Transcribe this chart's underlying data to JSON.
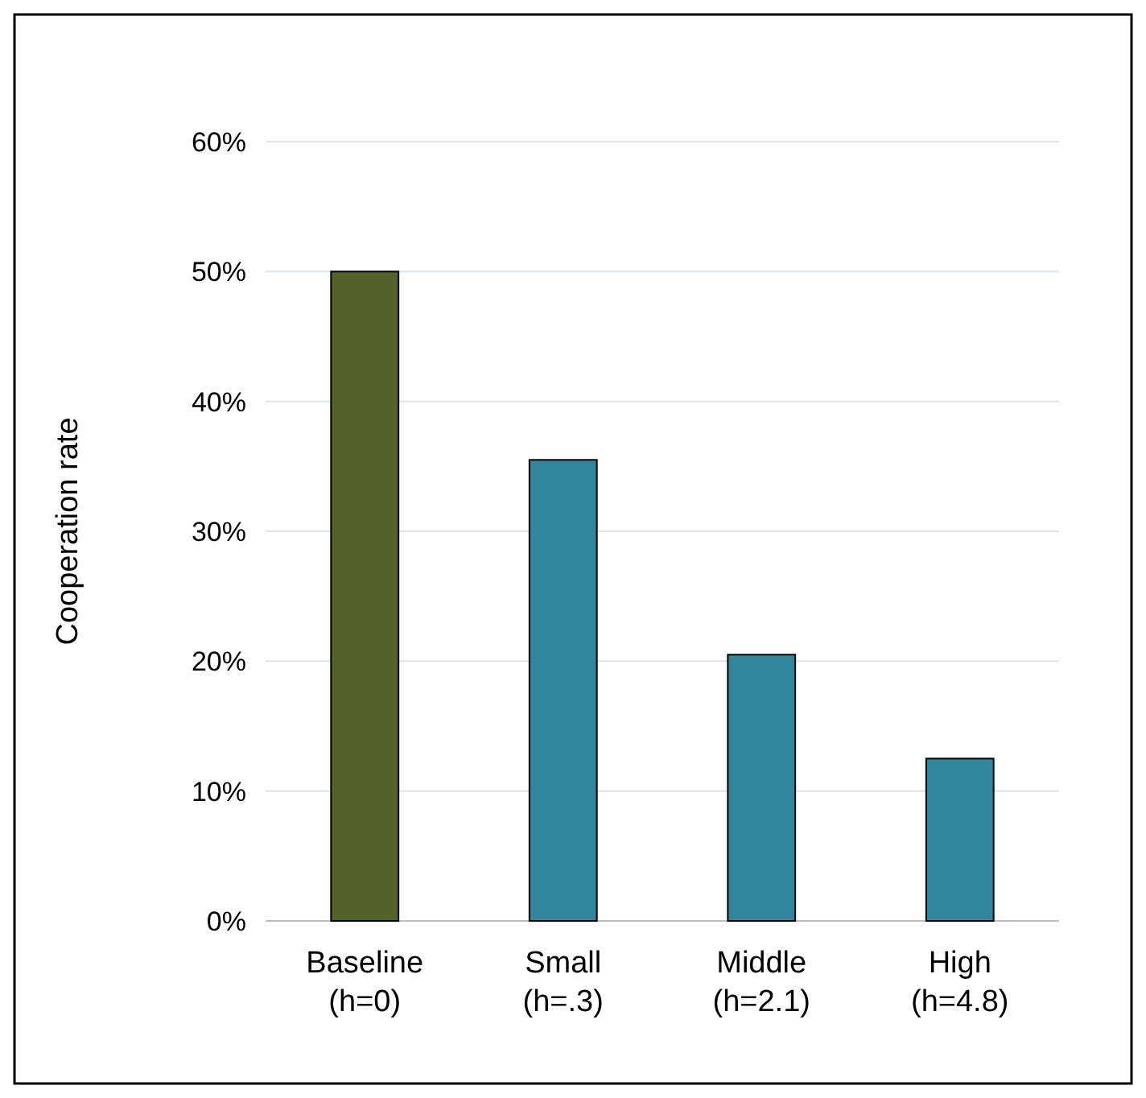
{
  "chart_data": {
    "type": "bar",
    "ylabel": "Cooperation rate",
    "categories": [
      "Baseline\n(h=0)",
      "Small\n(h=.3)",
      "Middle\n(h=2.1)",
      "High\n(h=4.8)"
    ],
    "values": [
      50,
      35.5,
      20.5,
      12.5
    ],
    "colors": [
      "#536329",
      "#31869e",
      "#31869e",
      "#31869e"
    ],
    "ylim": [
      0,
      60
    ],
    "yticks": [
      {
        "value": 0,
        "label": "0%"
      },
      {
        "value": 10,
        "label": "10%"
      },
      {
        "value": 20,
        "label": "20%"
      },
      {
        "value": 30,
        "label": "30%"
      },
      {
        "value": 40,
        "label": "40%"
      },
      {
        "value": 50,
        "label": "50%"
      },
      {
        "value": 60,
        "label": "60%"
      }
    ],
    "grid": "y"
  }
}
